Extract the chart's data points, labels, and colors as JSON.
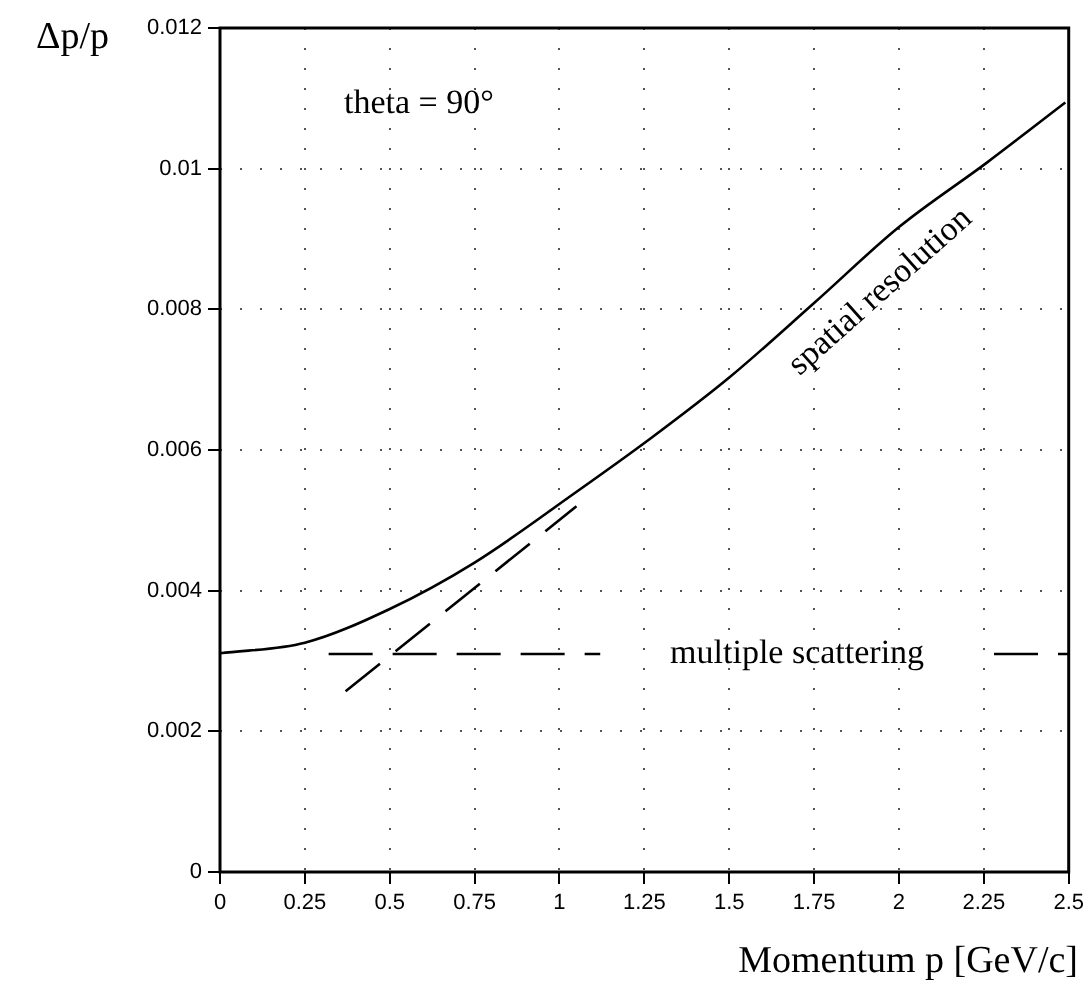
{
  "chart_data": {
    "type": "line",
    "xlabel": "Momentum p [GeV/c]",
    "ylabel": "Δp/p",
    "xlim": [
      0,
      2.5
    ],
    "xticks": [
      0,
      0.25,
      0.5,
      0.75,
      1,
      1.25,
      1.5,
      1.75,
      2,
      2.25,
      2.5
    ],
    "ylim": [
      0,
      0.012
    ],
    "yticks": [
      0,
      0.002,
      0.004,
      0.006,
      0.008,
      0.01,
      0.012
    ],
    "grid": true,
    "legend": false,
    "marker": "none",
    "series": [
      {
        "name": "spatial resolution",
        "color": "#000000",
        "line_style": "solid",
        "x": [
          0,
          0.25,
          0.5,
          0.75,
          1.04,
          1.27,
          1.5,
          1.75,
          2,
          2.26,
          2.49
        ],
        "values": [
          0.00311,
          0.00326,
          0.00374,
          0.0044,
          0.00537,
          0.00617,
          0.00703,
          0.00809,
          0.00917,
          0.01009,
          0.01094
        ]
      },
      {
        "name": "multiple scattering",
        "color": "#000000",
        "line_style": "dashed",
        "x": [
          0.32,
          1.12,
          1.7,
          2.28,
          2.5
        ],
        "values": [
          0.0031,
          0.0031,
          null,
          0.0031,
          0.0031
        ]
      },
      {
        "color": "#000000",
        "line_style": "dashed",
        "x": [
          0.37,
          1.05
        ],
        "values": [
          0.00257,
          0.0052
        ]
      }
    ],
    "annotations": [
      "theta = 90°"
    ]
  }
}
